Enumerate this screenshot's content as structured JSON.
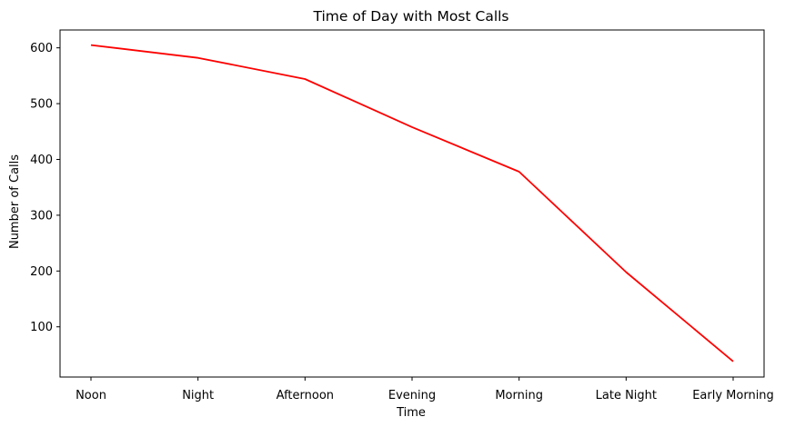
{
  "chart_data": {
    "type": "line",
    "title": "Time of Day with Most Calls",
    "xlabel": "Time",
    "ylabel": "Number of Calls",
    "categories": [
      "Noon",
      "Night",
      "Afternoon",
      "Evening",
      "Morning",
      "Late Night",
      "Early Morning"
    ],
    "series": [
      {
        "values": [
          605,
          582,
          544,
          458,
          378,
          198,
          38
        ],
        "color": "#ff0000"
      }
    ],
    "ylim": [
      10,
      632
    ],
    "yticks": [
      100,
      200,
      300,
      400,
      500,
      600
    ],
    "grid": false,
    "legend": "none"
  }
}
